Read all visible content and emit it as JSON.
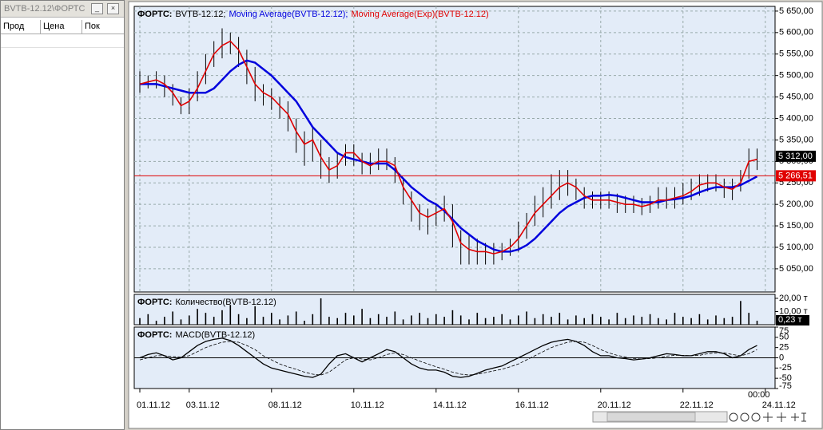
{
  "window": {
    "title": "BVTB-12.12\\ФОРТС",
    "columns": [
      "Прод",
      "Цена",
      "Пок"
    ]
  },
  "chart_data": [
    {
      "type": "ohlc",
      "title": "ФОРТС:",
      "grid": true,
      "ylim": [
        4996,
        5661
      ],
      "yticks": [
        {
          "value": 5050,
          "label": "5 050,00"
        },
        {
          "value": 5100,
          "label": "5 100,00"
        },
        {
          "value": 5150,
          "label": "5 150,00"
        },
        {
          "value": 5200,
          "label": "5 200,00"
        },
        {
          "value": 5250,
          "label": "5 250,00"
        },
        {
          "value": 5300,
          "label": "5 300,00"
        },
        {
          "value": 5350,
          "label": "5 350,00"
        },
        {
          "value": 5400,
          "label": "5 400,00"
        },
        {
          "value": 5450,
          "label": "5 450,00"
        },
        {
          "value": 5500,
          "label": "5 500,00"
        },
        {
          "value": 5550,
          "label": "5 550,00"
        },
        {
          "value": 5600,
          "label": "5 600,00"
        },
        {
          "value": 5650,
          "label": "5 650,00"
        }
      ],
      "last_price": {
        "value": 5312,
        "label": "5 312,00"
      },
      "level_line": {
        "value": 5266.51,
        "label": "5 266,51",
        "color": "#e00000"
      },
      "series": [
        {
          "name": "BVTB-12.12;",
          "color": "#000000",
          "high": [
            5510,
            5500,
            5510,
            5500,
            5480,
            5450,
            5470,
            5510,
            5550,
            5580,
            5610,
            5600,
            5590,
            5560,
            5520,
            5480,
            5470,
            5450,
            5440,
            5400,
            5370,
            5380,
            5350,
            5310,
            5320,
            5340,
            5340,
            5320,
            5320,
            5330,
            5330,
            5310,
            5260,
            5230,
            5200,
            5190,
            5200,
            5220,
            5200,
            5140,
            5130,
            5120,
            5110,
            5110,
            5110,
            5120,
            5160,
            5180,
            5220,
            5240,
            5270,
            5280,
            5280,
            5260,
            5240,
            5230,
            5230,
            5230,
            5225,
            5220,
            5220,
            5215,
            5220,
            5240,
            5240,
            5240,
            5250,
            5260,
            5270,
            5270,
            5270,
            5260,
            5260,
            5280,
            5330,
            5330,
            null
          ],
          "low": [
            5460,
            5470,
            5470,
            5450,
            5430,
            5410,
            5410,
            5440,
            5480,
            5520,
            5540,
            5550,
            5520,
            5480,
            5440,
            5430,
            5420,
            5400,
            5370,
            5320,
            5290,
            5300,
            5260,
            5250,
            5260,
            5290,
            5290,
            5270,
            5270,
            5280,
            5280,
            5250,
            5200,
            5160,
            5140,
            5130,
            5150,
            5160,
            5100,
            5060,
            5060,
            5060,
            5060,
            5060,
            5070,
            5080,
            5090,
            5120,
            5150,
            5170,
            5190,
            5210,
            5220,
            5210,
            5190,
            5190,
            5190,
            5190,
            5180,
            5180,
            5180,
            5175,
            5180,
            5190,
            5190,
            5190,
            5200,
            5210,
            5220,
            5230,
            5230,
            5215,
            5210,
            5230,
            5260,
            5280,
            null
          ]
        },
        {
          "name": "Moving Average(BVTB-12.12);",
          "color": "#0000dd",
          "values": [
            5480,
            5480,
            5480,
            5475,
            5470,
            5465,
            5460,
            5460,
            5460,
            5470,
            5490,
            5510,
            5525,
            5535,
            5530,
            5515,
            5500,
            5480,
            5460,
            5440,
            5410,
            5380,
            5360,
            5340,
            5320,
            5310,
            5305,
            5300,
            5295,
            5295,
            5295,
            5280,
            5260,
            5240,
            5225,
            5210,
            5200,
            5185,
            5165,
            5145,
            5130,
            5115,
            5105,
            5095,
            5090,
            5090,
            5095,
            5105,
            5120,
            5140,
            5160,
            5180,
            5195,
            5205,
            5215,
            5220,
            5220,
            5222,
            5220,
            5215,
            5210,
            5205,
            5205,
            5205,
            5210,
            5212,
            5215,
            5220,
            5228,
            5235,
            5240,
            5240,
            5240,
            5245,
            5255,
            5265,
            null
          ]
        },
        {
          "name": "Moving Average(Exp)(BVTB-12.12)",
          "color": "#e00000",
          "values": [
            5480,
            5485,
            5490,
            5480,
            5460,
            5430,
            5440,
            5470,
            5510,
            5550,
            5570,
            5580,
            5560,
            5520,
            5480,
            5460,
            5450,
            5430,
            5410,
            5370,
            5340,
            5350,
            5310,
            5280,
            5290,
            5320,
            5320,
            5300,
            5290,
            5300,
            5300,
            5290,
            5240,
            5210,
            5180,
            5170,
            5180,
            5190,
            5160,
            5110,
            5095,
            5090,
            5090,
            5085,
            5090,
            5100,
            5120,
            5150,
            5180,
            5200,
            5220,
            5240,
            5250,
            5240,
            5220,
            5210,
            5210,
            5210,
            5205,
            5200,
            5200,
            5195,
            5200,
            5210,
            5210,
            5215,
            5220,
            5230,
            5245,
            5250,
            5250,
            5240,
            5235,
            5250,
            5300,
            5305,
            null
          ]
        }
      ]
    },
    {
      "type": "bar",
      "title": "ФОРТС:",
      "ylim": [
        0,
        23
      ],
      "yticks": [
        {
          "value": 10,
          "label": "10,00 т"
        },
        {
          "value": 20,
          "label": "20,00 т"
        }
      ],
      "last_value": {
        "value": 0.23,
        "label": "0,23 т"
      },
      "series": [
        {
          "name": "Количество(BVTB-12.12)",
          "color": "#000000",
          "values": [
            5,
            8,
            3,
            6,
            10,
            4,
            7,
            12,
            9,
            6,
            11,
            15,
            8,
            5,
            14,
            6,
            9,
            4,
            7,
            10,
            3,
            8,
            20,
            6,
            5,
            9,
            7,
            12,
            5,
            8,
            6,
            10,
            4,
            7,
            9,
            5,
            8,
            6,
            11,
            7,
            4,
            9,
            5,
            6,
            8,
            4,
            7,
            10,
            5,
            8,
            6,
            9,
            4,
            7,
            5,
            8,
            6,
            4,
            9,
            5,
            7,
            6,
            8,
            5,
            4,
            9,
            6,
            5,
            8,
            4,
            7,
            5,
            6,
            18,
            9,
            3,
            null
          ]
        }
      ]
    },
    {
      "type": "line",
      "title": "ФОРТС:",
      "ylim": [
        -75,
        75
      ],
      "yticks": [
        -75,
        -50,
        -25,
        0,
        25,
        50,
        75
      ],
      "zero_line": true,
      "time_label": "00:00",
      "categories": [
        "01.11.12",
        null,
        null,
        null,
        null,
        null,
        "03.11.12",
        null,
        null,
        null,
        null,
        null,
        null,
        null,
        null,
        null,
        "08.11.12",
        null,
        null,
        null,
        null,
        null,
        null,
        null,
        null,
        null,
        "10.11.12",
        null,
        null,
        null,
        null,
        null,
        null,
        null,
        null,
        null,
        "14.11.12",
        null,
        null,
        null,
        null,
        null,
        null,
        null,
        null,
        null,
        "16.11.12",
        null,
        null,
        null,
        null,
        null,
        null,
        null,
        null,
        null,
        "20.11.12",
        null,
        null,
        null,
        null,
        null,
        null,
        null,
        null,
        null,
        "22.11.12",
        null,
        null,
        null,
        null,
        null,
        null,
        null,
        null,
        null,
        "24.11.12"
      ],
      "series": [
        {
          "name": "MACD(BVTB-12.12)",
          "color": "#000000",
          "values": [
            0,
            8,
            12,
            5,
            -5,
            0,
            15,
            30,
            40,
            45,
            48,
            42,
            30,
            15,
            0,
            -15,
            -25,
            -30,
            -35,
            -40,
            -45,
            -48,
            -40,
            -15,
            5,
            10,
            0,
            -10,
            0,
            10,
            20,
            15,
            0,
            -15,
            -25,
            -30,
            -30,
            -35,
            -45,
            -48,
            -45,
            -38,
            -30,
            -25,
            -20,
            -10,
            0,
            10,
            20,
            30,
            38,
            42,
            45,
            40,
            30,
            15,
            5,
            5,
            0,
            -2,
            -5,
            -3,
            0,
            5,
            10,
            8,
            5,
            5,
            10,
            15,
            15,
            10,
            0,
            5,
            20,
            30,
            null
          ]
        },
        {
          "color": "#000000",
          "values": [
            -5,
            0,
            5,
            5,
            3,
            2,
            5,
            15,
            25,
            32,
            38,
            40,
            38,
            30,
            20,
            5,
            -5,
            -15,
            -22,
            -28,
            -35,
            -40,
            -42,
            -35,
            -20,
            -5,
            0,
            -3,
            -5,
            0,
            8,
            12,
            8,
            0,
            -8,
            -15,
            -22,
            -28,
            -35,
            -40,
            -42,
            -40,
            -36,
            -32,
            -28,
            -22,
            -15,
            -5,
            5,
            15,
            25,
            32,
            38,
            40,
            38,
            30,
            20,
            12,
            6,
            2,
            -2,
            -3,
            -2,
            0,
            4,
            6,
            6,
            5,
            6,
            10,
            12,
            12,
            8,
            5,
            10,
            20,
            null
          ]
        }
      ]
    }
  ]
}
